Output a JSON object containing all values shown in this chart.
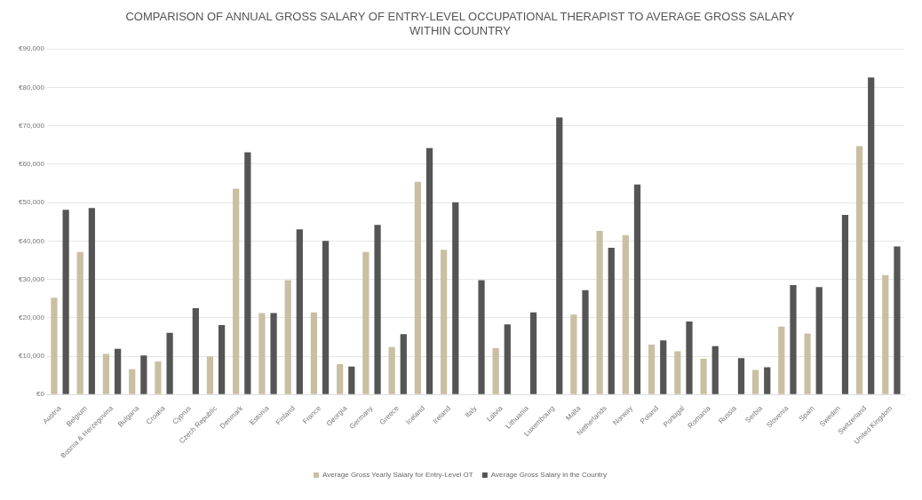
{
  "chart_data": {
    "type": "bar",
    "title": [
      "COMPARISON OF ANNUAL GROSS SALARY OF ENTRY-LEVEL OCCUPATIONAL THERAPIST TO AVERAGE GROSS SALARY",
      "WITHIN COUNTRY"
    ],
    "categories": [
      "Austria",
      "Belgium",
      "Bosnia & Herzegovina",
      "Bulgaria",
      "Croatia",
      "Cyprus",
      "Czech Republic",
      "Denmark",
      "Estonia",
      "Finland",
      "France",
      "Georgia",
      "Germany",
      "Greece",
      "Iceland",
      "Ireland",
      "Italy",
      "Latvia",
      "Lithuania",
      "Luxembourg",
      "Malta",
      "Netherlands",
      "Norway",
      "Poland",
      "Portugal",
      "Romania",
      "Russia",
      "Serbia",
      "Slovenia",
      "Spain",
      "Sweden",
      "Switzerland",
      "United Kingdom"
    ],
    "series": [
      {
        "name": "Average Gross Yearly Salary for Entry-Level OT",
        "color": "#c9bfa3",
        "values": [
          25200,
          37100,
          10600,
          6600,
          8600,
          null,
          9900,
          53600,
          21200,
          29800,
          21400,
          7900,
          37100,
          12400,
          55400,
          37700,
          null,
          12100,
          null,
          null,
          20800,
          42600,
          41500,
          13000,
          11300,
          9300,
          null,
          6400,
          17700,
          15900,
          null,
          64700,
          31100
        ]
      },
      {
        "name": "Average Gross Salary in the Country",
        "color": "#555555",
        "values": [
          48100,
          48600,
          11900,
          10200,
          16100,
          22500,
          18100,
          63100,
          21200,
          43000,
          40000,
          7300,
          44200,
          15700,
          64200,
          50100,
          29800,
          18300,
          21400,
          72200,
          27200,
          38200,
          54700,
          14100,
          19000,
          12600,
          9500,
          7100,
          28500,
          28000,
          46800,
          82600,
          38600
        ]
      }
    ],
    "ylim": [
      0,
      90000
    ],
    "yticks": [
      {
        "value": 0,
        "label": "€0"
      },
      {
        "value": 10000,
        "label": "€10,000"
      },
      {
        "value": 20000,
        "label": "€20,000"
      },
      {
        "value": 30000,
        "label": "€30,000"
      },
      {
        "value": 40000,
        "label": "€40,000"
      },
      {
        "value": 50000,
        "label": "€50,000"
      },
      {
        "value": 60000,
        "label": "€60,000"
      },
      {
        "value": 70000,
        "label": "€70,000"
      },
      {
        "value": 80000,
        "label": "€80,000"
      },
      {
        "value": 90000,
        "label": "€90,000"
      }
    ],
    "grid": "y",
    "legend": "bottom"
  }
}
